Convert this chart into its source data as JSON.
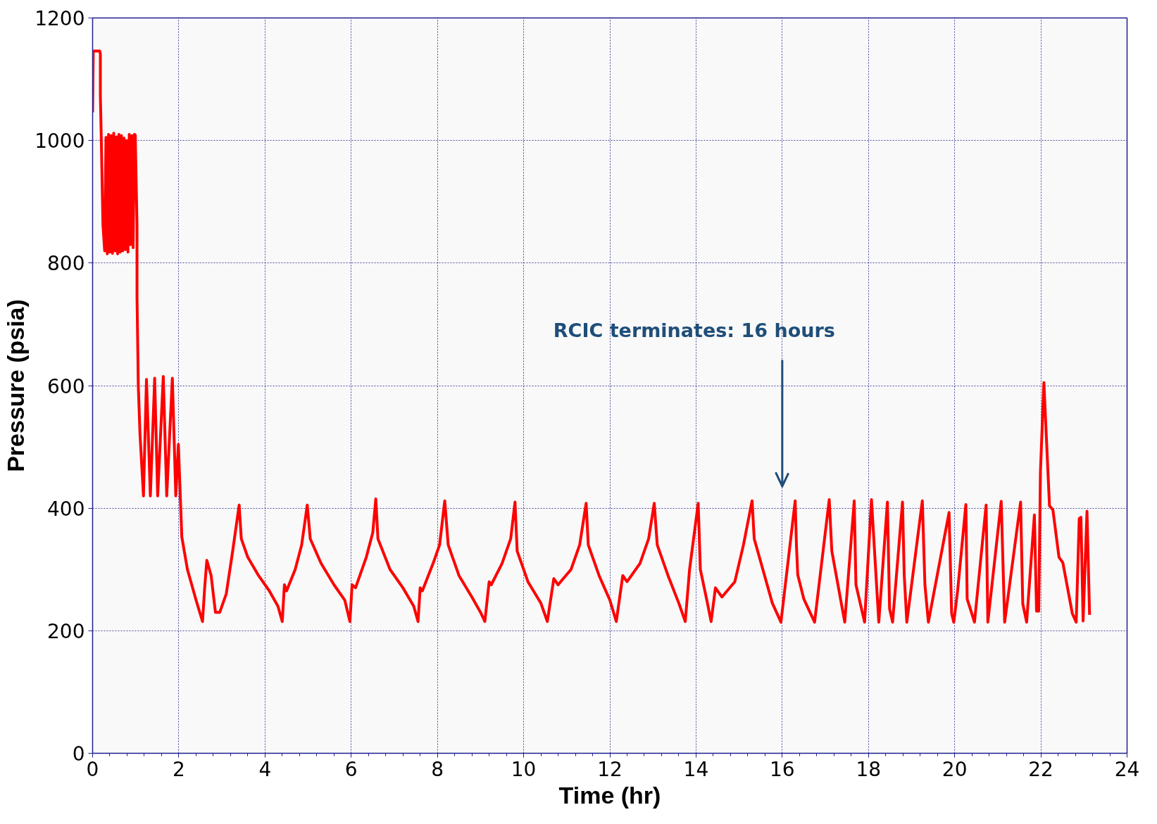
{
  "chart_data": {
    "type": "line",
    "xlabel": "Time (hr)",
    "ylabel": "Pressure (psia)",
    "xlim": [
      0,
      24
    ],
    "ylim": [
      0,
      1200
    ],
    "xticks": [
      0,
      2,
      4,
      6,
      8,
      10,
      12,
      14,
      16,
      18,
      20,
      22,
      24
    ],
    "yticks": [
      0,
      200,
      400,
      600,
      800,
      1000,
      1200
    ],
    "grid": true,
    "marker": "none",
    "line_style": "solid",
    "ref_lines": [
      {
        "axis": "x",
        "value": 16,
        "label": "RCIC terminates: 16 hours",
        "color": "#1f4e79"
      }
    ],
    "series": [
      {
        "color": "#ff0000",
        "x": [
          0,
          0.015,
          0.13,
          0.165,
          0.18,
          0.18,
          0.2,
          0.24,
          0.28,
          0.31,
          0.34,
          0.37,
          0.4,
          0.43,
          0.46,
          0.49,
          0.52,
          0.55,
          0.58,
          0.61,
          0.64,
          0.67,
          0.7,
          0.73,
          0.76,
          0.79,
          0.82,
          0.85,
          0.88,
          0.91,
          0.94,
          0.97,
          0.99,
          1.03,
          1.03,
          1.05,
          1.06,
          1.1,
          1.18,
          1.25,
          1.34,
          1.44,
          1.51,
          1.64,
          1.72,
          1.85,
          1.93,
          1.99,
          2.07,
          2.2,
          2.4,
          2.55,
          2.6,
          2.65,
          2.75,
          2.85,
          2.95,
          3.1,
          3.25,
          3.4,
          3.45,
          3.6,
          3.85,
          4.1,
          4.3,
          4.4,
          4.45,
          4.5,
          4.7,
          4.85,
          4.98,
          5.05,
          5.3,
          5.6,
          5.85,
          5.97,
          6.02,
          6.1,
          6.35,
          6.5,
          6.57,
          6.62,
          6.9,
          7.2,
          7.45,
          7.55,
          7.6,
          7.65,
          7.9,
          8.05,
          8.17,
          8.25,
          8.5,
          8.8,
          9.0,
          9.1,
          9.2,
          9.25,
          9.5,
          9.7,
          9.8,
          9.85,
          10.1,
          10.4,
          10.55,
          10.7,
          10.8,
          11.1,
          11.3,
          11.45,
          11.5,
          11.75,
          12.0,
          12.15,
          12.3,
          12.4,
          12.7,
          12.9,
          13.03,
          13.1,
          13.35,
          13.6,
          13.75,
          13.85,
          14.05,
          14.1,
          14.25,
          14.35,
          14.45,
          14.6,
          14.9,
          15.1,
          15.3,
          15.35,
          15.55,
          15.77,
          15.97,
          16.3,
          16.33,
          16.36,
          16.5,
          16.75,
          17.09,
          17.15,
          17.45,
          17.67,
          17.71,
          17.91,
          18.07,
          18.24,
          18.44,
          18.49,
          18.56,
          18.79,
          18.83,
          18.89,
          19.25,
          19.31,
          19.39,
          19.87,
          19.93,
          19.98,
          20.07,
          20.26,
          20.29,
          20.46,
          20.73,
          20.77,
          21.08,
          21.16,
          21.53,
          21.58,
          21.67,
          21.85,
          21.9,
          21.95,
          21.99,
          22.07,
          22.2,
          22.28,
          22.42,
          22.51,
          22.73,
          22.82,
          22.89,
          22.93,
          22.98,
          23.07,
          23.13
        ],
        "values": [
          1046,
          1146,
          1146,
          1146,
          1141,
          1073,
          1009,
          862,
          820,
          1005,
          815,
          1010,
          818,
          1008,
          816,
          1012,
          820,
          1006,
          815,
          1010,
          818,
          1008,
          820,
          1004,
          822,
          1000,
          818,
          1010,
          830,
          1008,
          825,
          1010,
          1009,
          862,
          746,
          652,
          600,
          520,
          420,
          610,
          420,
          612,
          420,
          615,
          420,
          612,
          420,
          504,
          353,
          300,
          250,
          215,
          270,
          315,
          290,
          230,
          230,
          260,
          330,
          405,
          350,
          320,
          290,
          265,
          240,
          215,
          275,
          265,
          300,
          340,
          405,
          350,
          310,
          275,
          250,
          215,
          275,
          270,
          320,
          360,
          415,
          350,
          300,
          270,
          240,
          215,
          270,
          265,
          310,
          340,
          412,
          340,
          290,
          255,
          230,
          215,
          280,
          275,
          310,
          350,
          410,
          330,
          280,
          245,
          215,
          285,
          275,
          300,
          340,
          408,
          340,
          290,
          250,
          215,
          290,
          280,
          310,
          350,
          408,
          340,
          290,
          245,
          215,
          300,
          408,
          300,
          250,
          215,
          270,
          255,
          280,
          340,
          412,
          350,
          300,
          245,
          214,
          412,
          338,
          291,
          252,
          214,
          414,
          330,
          214,
          412,
          275,
          214,
          414,
          214,
          410,
          236,
          214,
          410,
          291,
          214,
          412,
          275,
          214,
          393,
          228,
          214,
          266,
          406,
          252,
          214,
          405,
          214,
          411,
          214,
          410,
          244,
          214,
          389,
          232,
          232,
          459,
          605,
          404,
          397,
          320,
          311,
          228,
          214,
          383,
          385,
          216,
          395,
          226
        ]
      }
    ]
  }
}
